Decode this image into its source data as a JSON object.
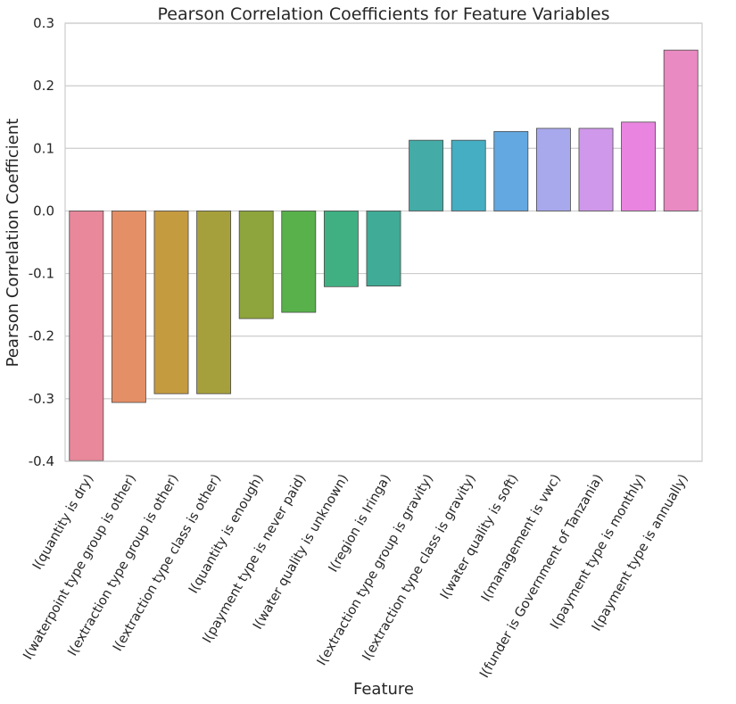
{
  "chart_data": {
    "type": "bar",
    "title": "Pearson Correlation Coefficients for Feature Variables",
    "xlabel": "Feature",
    "ylabel": "Pearson Correlation Coefficient",
    "ylim": [
      -0.4,
      0.3
    ],
    "yticks": [
      "0.3",
      "0.2",
      "0.1",
      "0.0",
      "-0.1",
      "-0.2",
      "-0.3",
      "-0.4"
    ],
    "grid": true,
    "categories": [
      "I(quantity is dry)",
      "I(waterpoint type group is other)",
      "I(extraction type group is other)",
      "I(extraction type class is other)",
      "I(quantity is enough)",
      "I(payment type is never paid)",
      "I(water quality is unknown)",
      "I(region is Iringa)",
      "I(extraction type group is gravity)",
      "I(extraction type class is gravity)",
      "I(water quality is soft)",
      "I(management is vwc)",
      "I(funder is Government of Tanzania)",
      "I(payment type is monthly)",
      "I(payment type is annually)"
    ],
    "values": [
      -0.399,
      -0.306,
      -0.292,
      -0.292,
      -0.172,
      -0.162,
      -0.121,
      -0.12,
      0.113,
      0.113,
      0.127,
      0.132,
      0.132,
      0.142,
      0.257
    ],
    "colors": [
      "#e8889a",
      "#e48f66",
      "#c59b40",
      "#a6a03c",
      "#8ea43c",
      "#58b14a",
      "#40b083",
      "#40ab96",
      "#44aba6",
      "#45aec2",
      "#63a8e0",
      "#a8a8ed",
      "#cf98ea",
      "#e985e0",
      "#e98ac2"
    ]
  }
}
